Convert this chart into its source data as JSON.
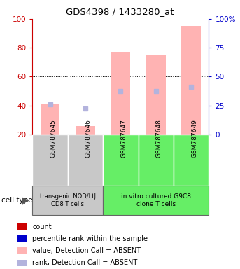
{
  "title": "GDS4398 / 1433280_at",
  "samples": [
    "GSM787645",
    "GSM787646",
    "GSM787647",
    "GSM787648",
    "GSM787649"
  ],
  "bar_values": [
    41,
    26,
    77,
    75,
    95
  ],
  "rank_values": [
    41,
    38,
    50,
    50,
    53
  ],
  "ylim_left": [
    20,
    100
  ],
  "yticks_left": [
    20,
    40,
    60,
    80,
    100
  ],
  "ytick_labels_right": [
    "0",
    "25",
    "50",
    "75",
    "100%"
  ],
  "bar_color": "#ffb3b3",
  "rank_color": "#b3b3dd",
  "group1_samples": [
    "GSM787645",
    "GSM787646"
  ],
  "group2_samples": [
    "GSM787647",
    "GSM787648",
    "GSM787649"
  ],
  "group1_label": "transgenic NOD/LtJ\nCD8 T cells",
  "group2_label": "in vitro cultured G9C8\nclone T cells",
  "group1_bg": "#c8c8c8",
  "group2_bg": "#66ee66",
  "cell_type_label": "cell type",
  "legend_items": [
    {
      "label": "count",
      "color": "#cc0000"
    },
    {
      "label": "percentile rank within the sample",
      "color": "#0000cc"
    },
    {
      "label": "value, Detection Call = ABSENT",
      "color": "#ffb3b3"
    },
    {
      "label": "rank, Detection Call = ABSENT",
      "color": "#b3b3dd"
    }
  ],
  "left_axis_color": "#cc0000",
  "right_axis_color": "#0000cc"
}
